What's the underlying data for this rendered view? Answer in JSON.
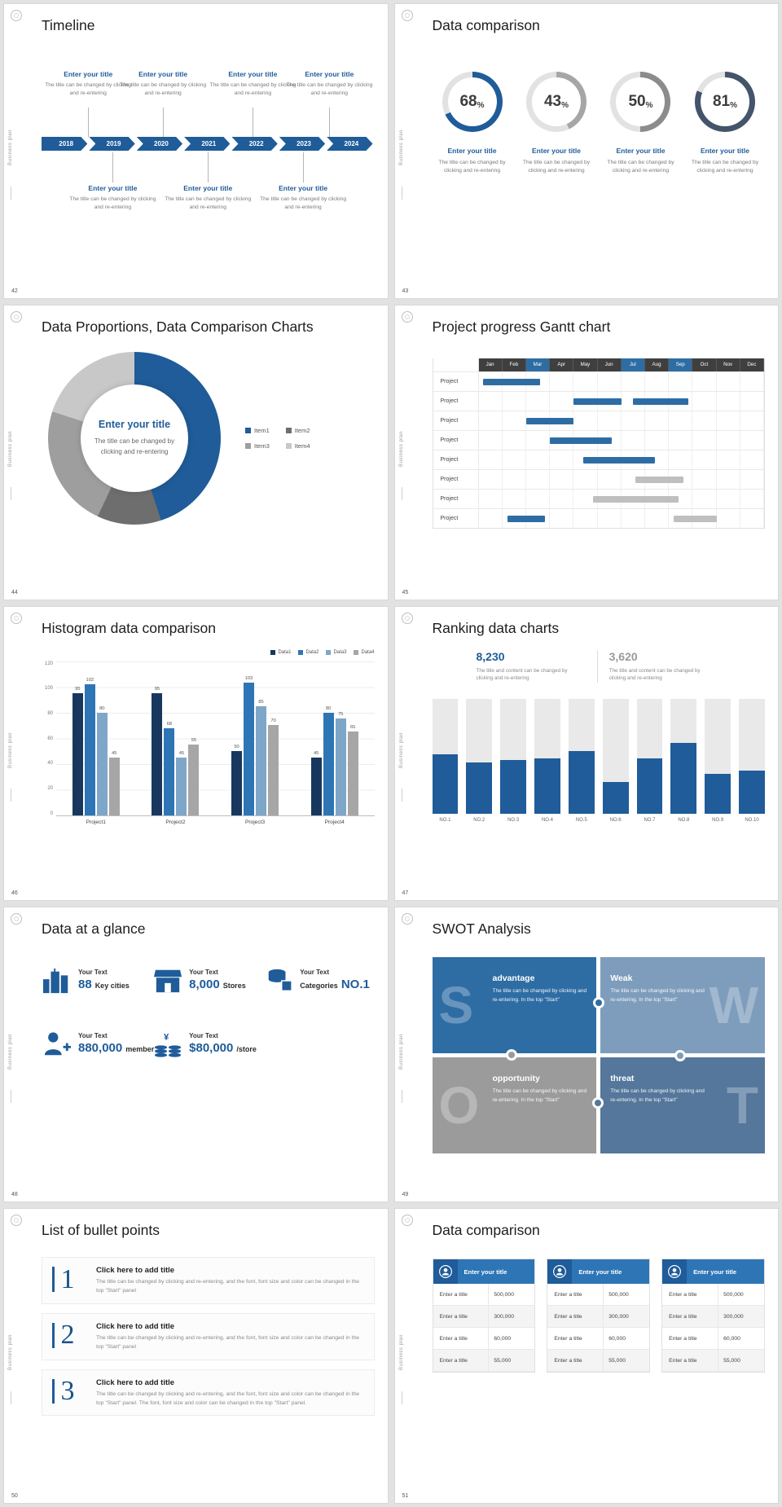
{
  "app": {
    "sidebar_text": "Business plan"
  },
  "slide42": {
    "number": "42",
    "title": "Timeline",
    "years": [
      "2018",
      "2019",
      "2020",
      "2021",
      "2022",
      "2023",
      "2024"
    ],
    "top_items": [
      {
        "title": "Enter your title",
        "body": "The title can be changed by clicking and re-entering"
      },
      {
        "title": "Enter your title",
        "body": "The title can be changed by clicking and re-entering"
      },
      {
        "title": "Enter your title",
        "body": "The title can be changed by clicking and re-entering"
      },
      {
        "title": "Enter your title",
        "body": "The title can be changed by clicking and re-entering"
      }
    ],
    "bottom_items": [
      {
        "title": "Enter your title",
        "body": "The title can be changed by clicking and re-entering"
      },
      {
        "title": "Enter your title",
        "body": "The title can be changed by clicking and re-entering"
      },
      {
        "title": "Enter your title",
        "body": "The title can be changed by clicking and re-entering"
      }
    ]
  },
  "slide43": {
    "number": "43",
    "title": "Data comparison",
    "rings": [
      {
        "value": 68,
        "suffix": "%",
        "color": "#1F5C99",
        "title": "Enter your title",
        "body": "The title can be changed by clicking and re-entering"
      },
      {
        "value": 43,
        "suffix": "%",
        "color": "#A6A6A6",
        "title": "Enter your title",
        "body": "The title can be changed by clicking and re-entering"
      },
      {
        "value": 50,
        "suffix": "%",
        "color": "#8C8C8C",
        "title": "Enter your title",
        "body": "The title can be changed by clicking and re-entering"
      },
      {
        "value": 81,
        "suffix": "%",
        "color": "#44546A",
        "title": "Enter your title",
        "body": "The title can be changed by clicking and re-entering"
      }
    ]
  },
  "slide44": {
    "number": "44",
    "title": "Data Proportions, Data Comparison Charts",
    "center_title": "Enter your title",
    "center_body": "The title can be changed by clicking and re-entering",
    "chart_data": {
      "type": "pie",
      "labels": [
        "Item1",
        "Item2",
        "Item3",
        "Item4"
      ],
      "values": [
        45,
        12,
        23,
        20
      ],
      "colors": [
        "#1F5C99",
        "#6E6E6E",
        "#9E9E9E",
        "#C8C8C8"
      ]
    }
  },
  "slide45": {
    "number": "45",
    "title": "Project progress Gantt chart",
    "months": [
      "Jan",
      "Feb",
      "Mar",
      "Apr",
      "May",
      "Jun",
      "Jul",
      "Aug",
      "Sep",
      "Oct",
      "Nov",
      "Dec"
    ],
    "highlight_months": [
      "Mar",
      "Jul",
      "Sep"
    ],
    "chart_data": {
      "type": "gantt",
      "rows": [
        {
          "label": "Project",
          "bars": [
            {
              "start": 0.2,
              "span": 2.4,
              "color": "blue"
            }
          ]
        },
        {
          "label": "Project",
          "bars": [
            {
              "start": 4.0,
              "span": 2.0,
              "color": "blue"
            },
            {
              "start": 6.5,
              "span": 2.3,
              "color": "blue"
            }
          ]
        },
        {
          "label": "Project",
          "bars": [
            {
              "start": 2.0,
              "span": 2.0,
              "color": "blue"
            }
          ]
        },
        {
          "label": "Project",
          "bars": [
            {
              "start": 3.0,
              "span": 2.6,
              "color": "blue"
            }
          ]
        },
        {
          "label": "Project",
          "bars": [
            {
              "start": 4.4,
              "span": 3.0,
              "color": "blue"
            }
          ]
        },
        {
          "label": "Project",
          "bars": [
            {
              "start": 6.6,
              "span": 2.0,
              "color": "gray"
            }
          ]
        },
        {
          "label": "Project",
          "bars": [
            {
              "start": 4.8,
              "span": 3.6,
              "color": "gray"
            }
          ]
        },
        {
          "label": "Project",
          "bars": [
            {
              "start": 1.2,
              "span": 1.6,
              "color": "blue"
            },
            {
              "start": 8.2,
              "span": 1.8,
              "color": "gray"
            }
          ]
        }
      ]
    }
  },
  "slide46": {
    "number": "46",
    "title": "Histogram data comparison",
    "chart_data": {
      "type": "bar",
      "categories": [
        "Project1",
        "Project2",
        "Project3",
        "Project4"
      ],
      "series": [
        {
          "name": "Data1",
          "color": "#17375E",
          "values": [
            95,
            95,
            50,
            45
          ]
        },
        {
          "name": "Data2",
          "color": "#2E75B6",
          "values": [
            102,
            68,
            103,
            80
          ]
        },
        {
          "name": "Data3",
          "color": "#7EA6C8",
          "values": [
            80,
            45,
            85,
            75
          ]
        },
        {
          "name": "Data4",
          "color": "#A6A6A6",
          "values": [
            45,
            55,
            70,
            65
          ]
        }
      ],
      "ylim": [
        0,
        120
      ],
      "yticks": [
        0,
        20,
        40,
        60,
        80,
        100,
        120
      ]
    }
  },
  "slide47": {
    "number": "47",
    "title": "Ranking data charts",
    "stat1": {
      "value": "8,230",
      "body": "The title and content can be changed by clicking and re-entering"
    },
    "stat2": {
      "value": "3,620",
      "body": "The title and content can be changed by clicking and re-entering"
    },
    "chart_data": {
      "type": "bar",
      "categories": [
        "NO.1",
        "NO.2",
        "NO.3",
        "NO.4",
        "NO.5",
        "NO.6",
        "NO.7",
        "NO.8",
        "NO.9",
        "NO.10"
      ],
      "values": [
        52,
        45,
        47,
        48,
        55,
        28,
        48,
        62,
        35,
        38
      ],
      "max": 100
    }
  },
  "slide48": {
    "number": "48",
    "title": "Data at a glance",
    "stats": [
      {
        "icon": "city-icon",
        "label": "Your Text",
        "value": "88",
        "unit": "Key cities",
        "unit_first": false
      },
      {
        "icon": "store-icon",
        "label": "Your Text",
        "value": "8,000",
        "unit": "Stores",
        "unit_first": false
      },
      {
        "icon": "category-icon",
        "label": "Your Text",
        "value": "NO.1",
        "unit": "Categories",
        "unit_first": true
      },
      {
        "icon": "member-icon",
        "label": "Your Text",
        "value": "880,000",
        "unit": "member",
        "unit_first": false
      },
      {
        "icon": "money-icon",
        "label": "Your Text",
        "value": "$80,000",
        "unit": "/store",
        "unit_first": false
      }
    ]
  },
  "slide49": {
    "number": "49",
    "title": "SWOT Analysis",
    "cells": [
      {
        "letter": "S",
        "title": "advantage",
        "body": "The title can be changed by clicking and re-entering. In the top \"Start\"",
        "bg": "#2E6DA4"
      },
      {
        "letter": "W",
        "title": "Weak",
        "body": "The title can be changed by clicking and re-entering. In the top \"Start\"",
        "bg": "#7E9DBC"
      },
      {
        "letter": "O",
        "title": "opportunity",
        "body": "The title can be changed by clicking and re-entering. In the top \"Start\"",
        "bg": "#9B9B9B"
      },
      {
        "letter": "T",
        "title": "threat",
        "body": "The title can be changed by clicking and re-entering. In the top \"Start\"",
        "bg": "#54779B"
      }
    ]
  },
  "slide50": {
    "number": "50",
    "title": "List of bullet points",
    "items": [
      {
        "num": "1",
        "title": "Click here to add title",
        "body": "The title can be changed by clicking and re-entering, and the font, font size and color can be changed in the top \"Start\" panel"
      },
      {
        "num": "2",
        "title": "Click here to add title",
        "body": "The title can be changed by clicking and re-entering, and the font, font size and color can be changed in the top \"Start\" panel"
      },
      {
        "num": "3",
        "title": "Click here to add title",
        "body": "The title can be changed by clicking and re-entering, and the font, font size and color can be changed in the top \"Start\" panel. The font, font size and color can be changed in the top \"Start\" panel."
      }
    ]
  },
  "slide51": {
    "number": "51",
    "title": "Data comparison",
    "cards": [
      {
        "header": "Enter your title",
        "rows": [
          [
            "Enter a title",
            "500,000"
          ],
          [
            "Enter a title",
            "300,000"
          ],
          [
            "Enter a title",
            "60,000"
          ],
          [
            "Enter a title",
            "55,000"
          ]
        ]
      },
      {
        "header": "Enter your title",
        "rows": [
          [
            "Enter a title",
            "500,000"
          ],
          [
            "Enter a title",
            "300,000"
          ],
          [
            "Enter a title",
            "60,000"
          ],
          [
            "Enter a title",
            "55,000"
          ]
        ]
      },
      {
        "header": "Enter your title",
        "rows": [
          [
            "Enter a title",
            "500,000"
          ],
          [
            "Enter a title",
            "300,000"
          ],
          [
            "Enter a title",
            "60,000"
          ],
          [
            "Enter a title",
            "55,000"
          ]
        ]
      }
    ]
  }
}
